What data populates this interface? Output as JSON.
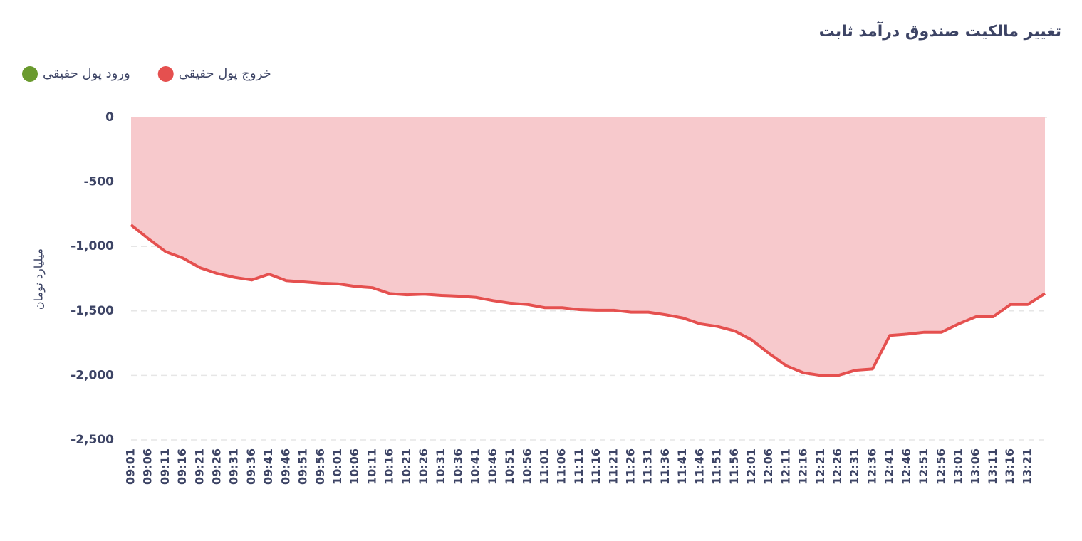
{
  "chart_data": {
    "type": "area",
    "title": "تغییر مالکیت صندوق درآمد ثابت",
    "y_label": "میلیارد تومان",
    "categories": [
      "09:01",
      "09:06",
      "09:11",
      "09:16",
      "09:21",
      "09:26",
      "09:31",
      "09:36",
      "09:41",
      "09:46",
      "09:51",
      "09:56",
      "10:01",
      "10:06",
      "10:11",
      "10:16",
      "10:21",
      "10:26",
      "10:31",
      "10:36",
      "10:41",
      "10:46",
      "10:51",
      "10:56",
      "11:01",
      "11:06",
      "11:11",
      "11:16",
      "11:21",
      "11:26",
      "11:31",
      "11:36",
      "11:41",
      "11:46",
      "11:51",
      "11:56",
      "12:01",
      "12:06",
      "12:11",
      "12:16",
      "12:21",
      "12:26",
      "12:31",
      "12:36",
      "12:41",
      "12:46",
      "12:51",
      "12:56",
      "13:01",
      "13:06",
      "13:11",
      "13:16",
      "13:21",
      null
    ],
    "series": [
      {
        "name": "خروج پول حقیقی",
        "color": "#e5504f",
        "fill": "#f7c9cc",
        "values": [
          -833,
          -940,
          -1040,
          -1090,
          -1165,
          -1210,
          -1240,
          -1260,
          -1215,
          -1265,
          -1275,
          -1285,
          -1290,
          -1310,
          -1320,
          -1365,
          -1375,
          -1370,
          -1380,
          -1385,
          -1395,
          -1420,
          -1440,
          -1450,
          -1475,
          -1475,
          -1490,
          -1495,
          -1495,
          -1510,
          -1510,
          -1530,
          -1555,
          -1600,
          -1620,
          -1655,
          -1725,
          -1830,
          -1925,
          -1980,
          -2000,
          -2000,
          -1960,
          -1950,
          -1690,
          -1680,
          -1665,
          -1665,
          -1600,
          -1545,
          -1545,
          -1450,
          -1450,
          -1365
        ]
      },
      {
        "name": "ورود پول حقیقی",
        "color": "#6a9a2e",
        "values": [
          null,
          null,
          null,
          null,
          null,
          null,
          null,
          null,
          null,
          null,
          null,
          null,
          null,
          null,
          null,
          null,
          null,
          null,
          null,
          null,
          null,
          null,
          null,
          null,
          null,
          null,
          null,
          null,
          null,
          null,
          null,
          null,
          null,
          null,
          null,
          null,
          null,
          null,
          null,
          null,
          null,
          null,
          null,
          null,
          null,
          null,
          null,
          null,
          null,
          null,
          null,
          null,
          null,
          null
        ]
      }
    ],
    "ylim": [
      -2500,
      0
    ],
    "yticks": [
      0,
      -500,
      {
        "value": -1000,
        "label": "-1,000"
      },
      {
        "value": -1500,
        "label": "-1,500"
      },
      {
        "value": -2000,
        "label": "-2,000"
      },
      {
        "value": -2500,
        "label": "-2,500"
      }
    ],
    "grid": true,
    "legend": "top-left"
  }
}
